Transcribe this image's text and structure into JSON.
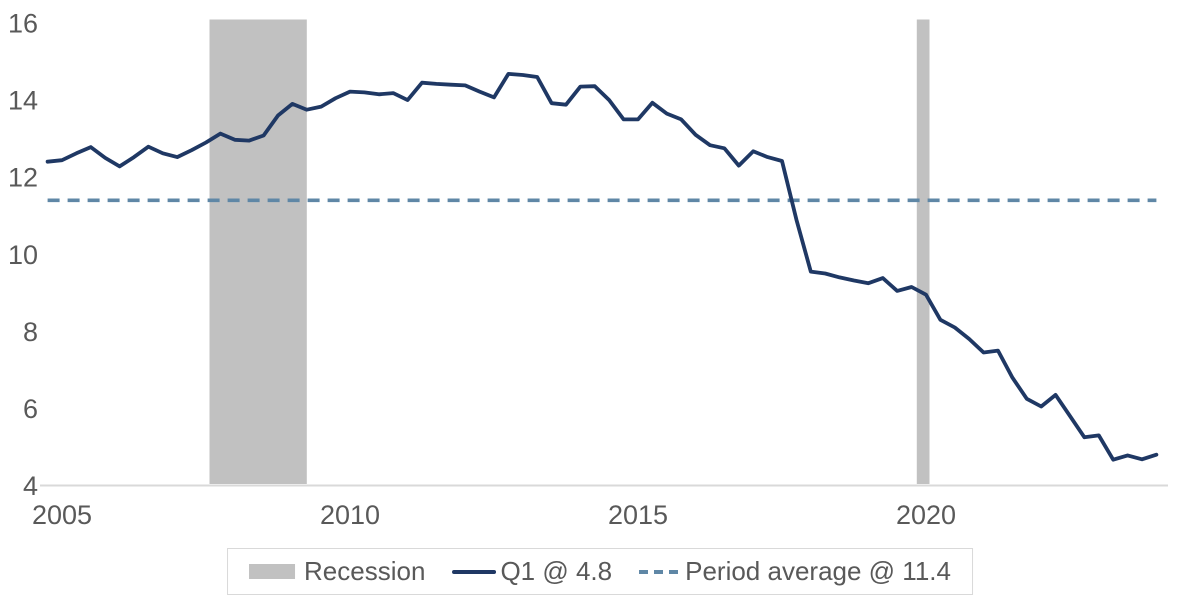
{
  "colors": {
    "background": "#ffffff",
    "series": "#1f3864",
    "average": "#5f87a6",
    "band": "#c1c1c1",
    "axis_line": "#d9d9d9",
    "text": "#595959",
    "legend_border": "#d9d9d9"
  },
  "chart_data": {
    "type": "line",
    "title": "",
    "grid": false,
    "legend_position": "bottom",
    "y_axis": {
      "min": 4,
      "max": 16,
      "ticks": [
        16,
        14,
        12,
        10,
        8,
        6,
        4
      ]
    },
    "x_axis": {
      "tick_labels": [
        "2005",
        "2010",
        "2015",
        "2020"
      ],
      "tick_years": [
        2005,
        2010,
        2015,
        2020
      ],
      "range": [
        2004.75,
        2024.0
      ]
    },
    "recession_bands": [
      {
        "start": 2007.56,
        "end": 2009.25
      },
      {
        "start": 2019.84,
        "end": 2020.06
      }
    ],
    "average_line": {
      "label": "Period average @ 11.4",
      "value": 11.4,
      "style": "dashed"
    },
    "series": [
      {
        "name": "Q1",
        "label": "Q1 @ 4.8",
        "last_value": 4.8,
        "frequency": "quarterly",
        "x": [
          2004.75,
          2005.0,
          2005.25,
          2005.5,
          2005.75,
          2006.0,
          2006.25,
          2006.5,
          2006.75,
          2007.0,
          2007.25,
          2007.5,
          2007.75,
          2008.0,
          2008.25,
          2008.5,
          2008.75,
          2009.0,
          2009.25,
          2009.5,
          2009.75,
          2010.0,
          2010.25,
          2010.5,
          2010.75,
          2011.0,
          2011.25,
          2011.5,
          2011.75,
          2012.0,
          2012.25,
          2012.5,
          2012.75,
          2013.0,
          2013.25,
          2013.5,
          2013.75,
          2014.0,
          2014.25,
          2014.5,
          2014.75,
          2015.0,
          2015.25,
          2015.5,
          2015.75,
          2016.0,
          2016.25,
          2016.5,
          2016.75,
          2017.0,
          2017.25,
          2017.5,
          2017.75,
          2018.0,
          2018.25,
          2018.5,
          2018.75,
          2019.0,
          2019.25,
          2019.5,
          2019.75,
          2020.0,
          2020.25,
          2020.5,
          2020.75,
          2021.0,
          2021.25,
          2021.5,
          2021.75,
          2022.0,
          2022.25,
          2022.5,
          2022.75,
          2023.0,
          2023.25,
          2023.5,
          2023.75,
          2024.0
        ],
        "values": [
          12.4,
          12.44,
          12.62,
          12.78,
          12.5,
          12.28,
          12.52,
          12.79,
          12.62,
          12.52,
          12.7,
          12.9,
          13.13,
          12.97,
          12.95,
          13.08,
          13.6,
          13.9,
          13.75,
          13.83,
          14.05,
          14.22,
          14.2,
          14.15,
          14.18,
          14.0,
          14.45,
          14.42,
          14.4,
          14.38,
          14.22,
          14.07,
          14.68,
          14.65,
          14.6,
          13.92,
          13.88,
          14.35,
          14.36,
          14.0,
          13.5,
          13.5,
          13.93,
          13.65,
          13.5,
          13.1,
          12.83,
          12.75,
          12.3,
          12.67,
          12.52,
          12.42,
          10.9,
          9.55,
          9.5,
          9.4,
          9.32,
          9.25,
          9.38,
          9.05,
          9.15,
          8.95,
          8.3,
          8.1,
          7.8,
          7.45,
          7.5,
          6.8,
          6.25,
          6.05,
          6.35,
          5.8,
          5.25,
          5.3,
          4.67,
          4.78,
          4.68,
          4.8
        ]
      }
    ],
    "legend": {
      "items": [
        {
          "label": "Recession",
          "swatch": "band"
        },
        {
          "label": "Q1 @ 4.8",
          "swatch": "solid-line"
        },
        {
          "label": "Period average @ 11.4",
          "swatch": "dashed-line"
        }
      ]
    }
  }
}
